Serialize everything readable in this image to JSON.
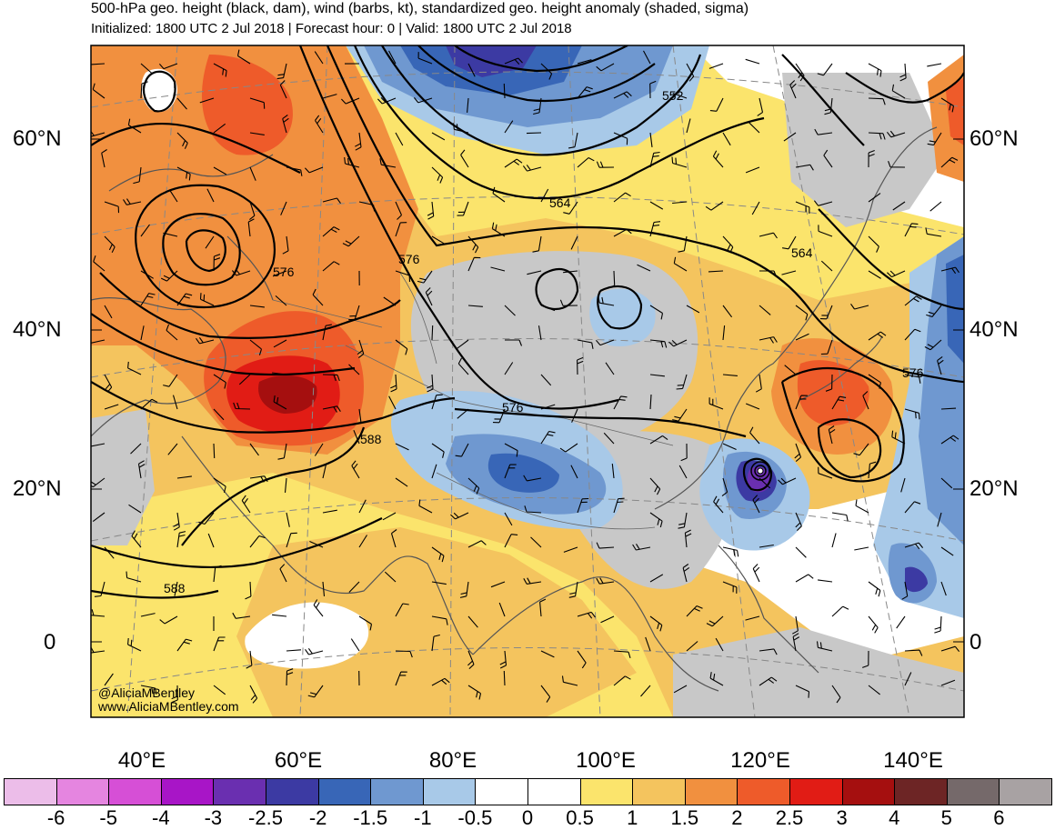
{
  "header": {
    "title": "500-hPa geo. height (black, dam), wind (barbs, kt), standardized geo. height anomaly (shaded, sigma)",
    "subtitle": "Initialized: 1800 UTC 2 Jul 2018 | Forecast hour: 0 | Valid: 1800 UTC 2 Jul 2018"
  },
  "map": {
    "lat_labels": [
      "60°N",
      "40°N",
      "20°N",
      "0"
    ],
    "lon_labels": [
      "40°E",
      "60°E",
      "80°E",
      "100°E",
      "120°E",
      "140°E"
    ],
    "contour_labels": [
      "552",
      "564",
      "564",
      "576",
      "576",
      "576",
      "576",
      "588",
      "588"
    ],
    "credit_line1": "@AliciaMBentley",
    "credit_line2": "www.AliciaMBentley.com",
    "colors": {
      "land_outline": "#555555",
      "contour": "#000000",
      "grid": "#888888"
    }
  },
  "colorbar": {
    "ticks": [
      "-6",
      "-5",
      "-4",
      "-3",
      "-2.5",
      "-2",
      "-1.5",
      "-1",
      "-0.5",
      "0",
      "0.5",
      "1",
      "1.5",
      "2",
      "2.5",
      "3",
      "4",
      "5",
      "6"
    ],
    "colors": [
      "#ecbde9",
      "#e585e0",
      "#d64fd6",
      "#a815c7",
      "#6a2fb0",
      "#3c3aa3",
      "#3866b7",
      "#6f98d0",
      "#a8c9e8",
      "#ffffff",
      "#ffffff",
      "#fbe46c",
      "#f4c45e",
      "#f1903f",
      "#ee5b2a",
      "#e11c15",
      "#a50f0f",
      "#6d2525",
      "#75696a",
      "#a8a2a3"
    ]
  }
}
